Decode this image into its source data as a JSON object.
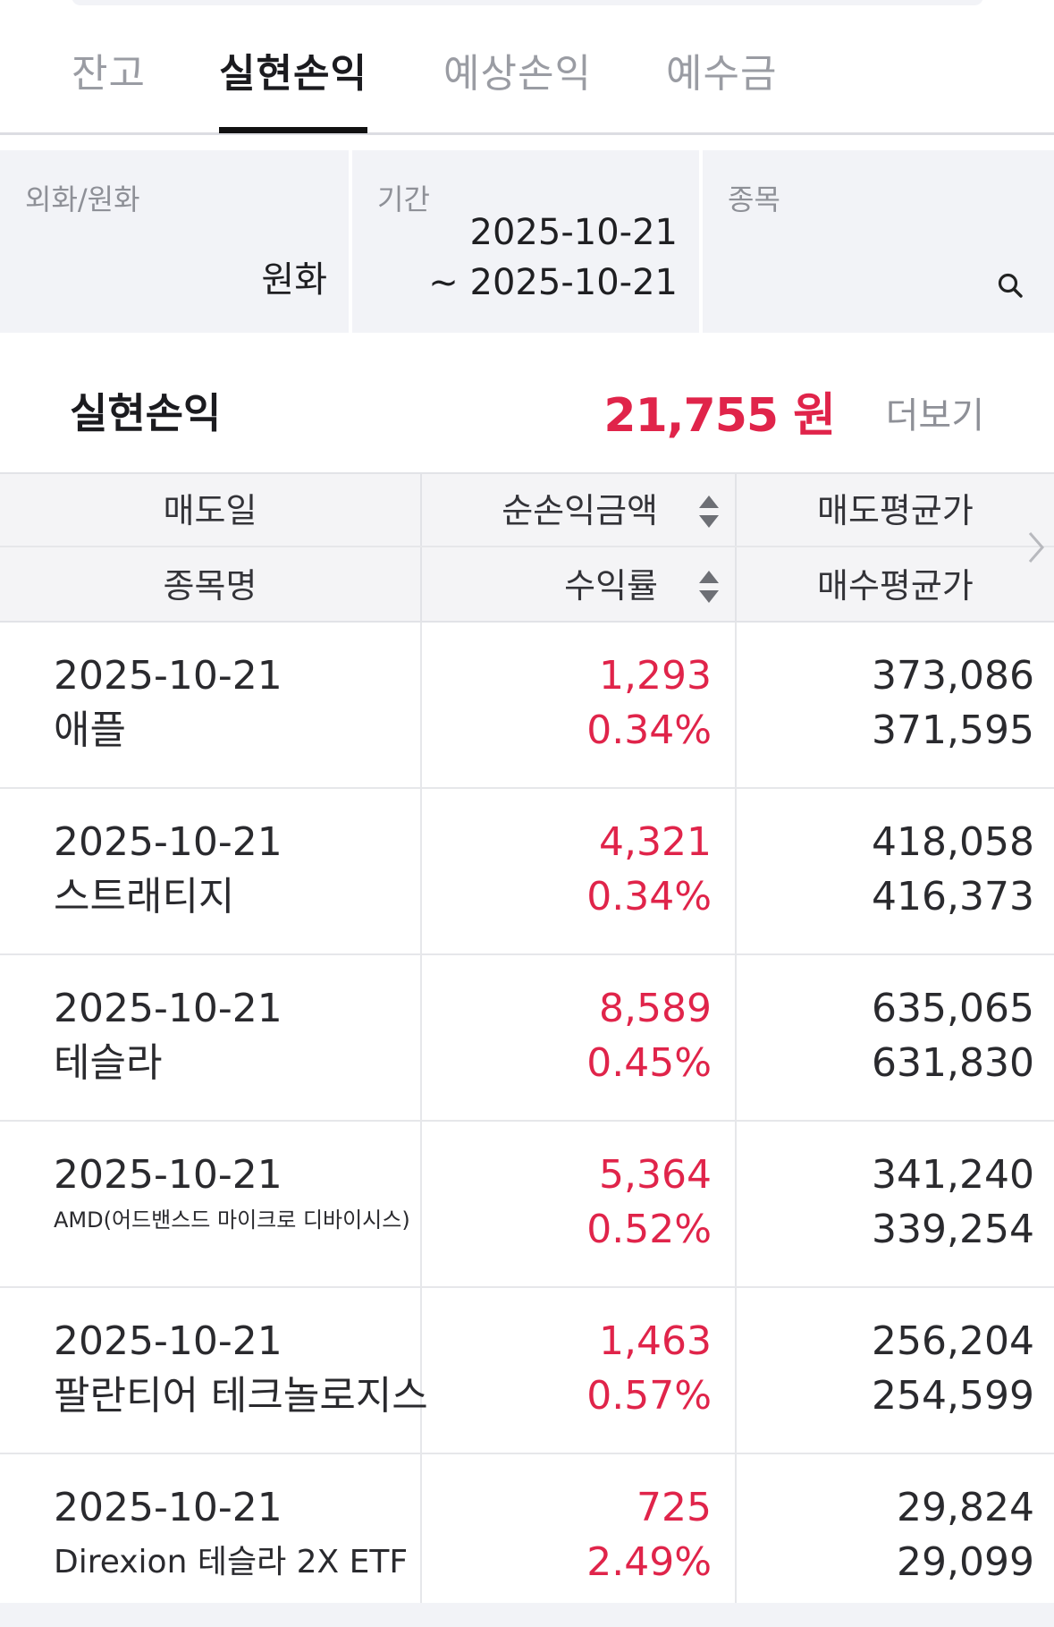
{
  "tabs": [
    {
      "label": "잔고",
      "active": false
    },
    {
      "label": "실현손익",
      "active": true
    },
    {
      "label": "예상손익",
      "active": false
    },
    {
      "label": "예수금",
      "active": false
    }
  ],
  "filters": {
    "currency": {
      "label": "외화/원화",
      "value": "원화"
    },
    "period": {
      "label": "기간",
      "start": "2025-10-21",
      "end": "~ 2025-10-21"
    },
    "stock": {
      "label": "종목",
      "icon": "search-icon"
    }
  },
  "summary": {
    "label": "실현손익",
    "amount": "21,755 원",
    "more": "더보기",
    "accent": "#e0244a"
  },
  "table": {
    "headers": {
      "row1": {
        "col1": "매도일",
        "col2": "순손익금액",
        "col3": "매도평균가"
      },
      "row2": {
        "col1": "종목명",
        "col2": "수익률",
        "col3": "매수평균가"
      }
    },
    "rows": [
      {
        "date": "2025-10-21",
        "name": "애플",
        "profit": "1,293",
        "rate": "0.34%",
        "sell_avg": "373,086",
        "buy_avg": "371,595"
      },
      {
        "date": "2025-10-21",
        "name": "스트래티지",
        "profit": "4,321",
        "rate": "0.34%",
        "sell_avg": "418,058",
        "buy_avg": "416,373"
      },
      {
        "date": "2025-10-21",
        "name": "테슬라",
        "profit": "8,589",
        "rate": "0.45%",
        "sell_avg": "635,065",
        "buy_avg": "631,830"
      },
      {
        "date": "2025-10-21",
        "name": "AMD(어드밴스드 마이크로 디바이시스)",
        "profit": "5,364",
        "rate": "0.52%",
        "sell_avg": "341,240",
        "buy_avg": "339,254"
      },
      {
        "date": "2025-10-21",
        "name": "팔란티어 테크놀로지스",
        "profit": "1,463",
        "rate": "0.57%",
        "sell_avg": "256,204",
        "buy_avg": "254,599"
      },
      {
        "date": "2025-10-21",
        "name": "Direxion 테슬라 2X ETF",
        "profit": "725",
        "rate": "2.49%",
        "sell_avg": "29,824",
        "buy_avg": "29,099"
      }
    ]
  }
}
